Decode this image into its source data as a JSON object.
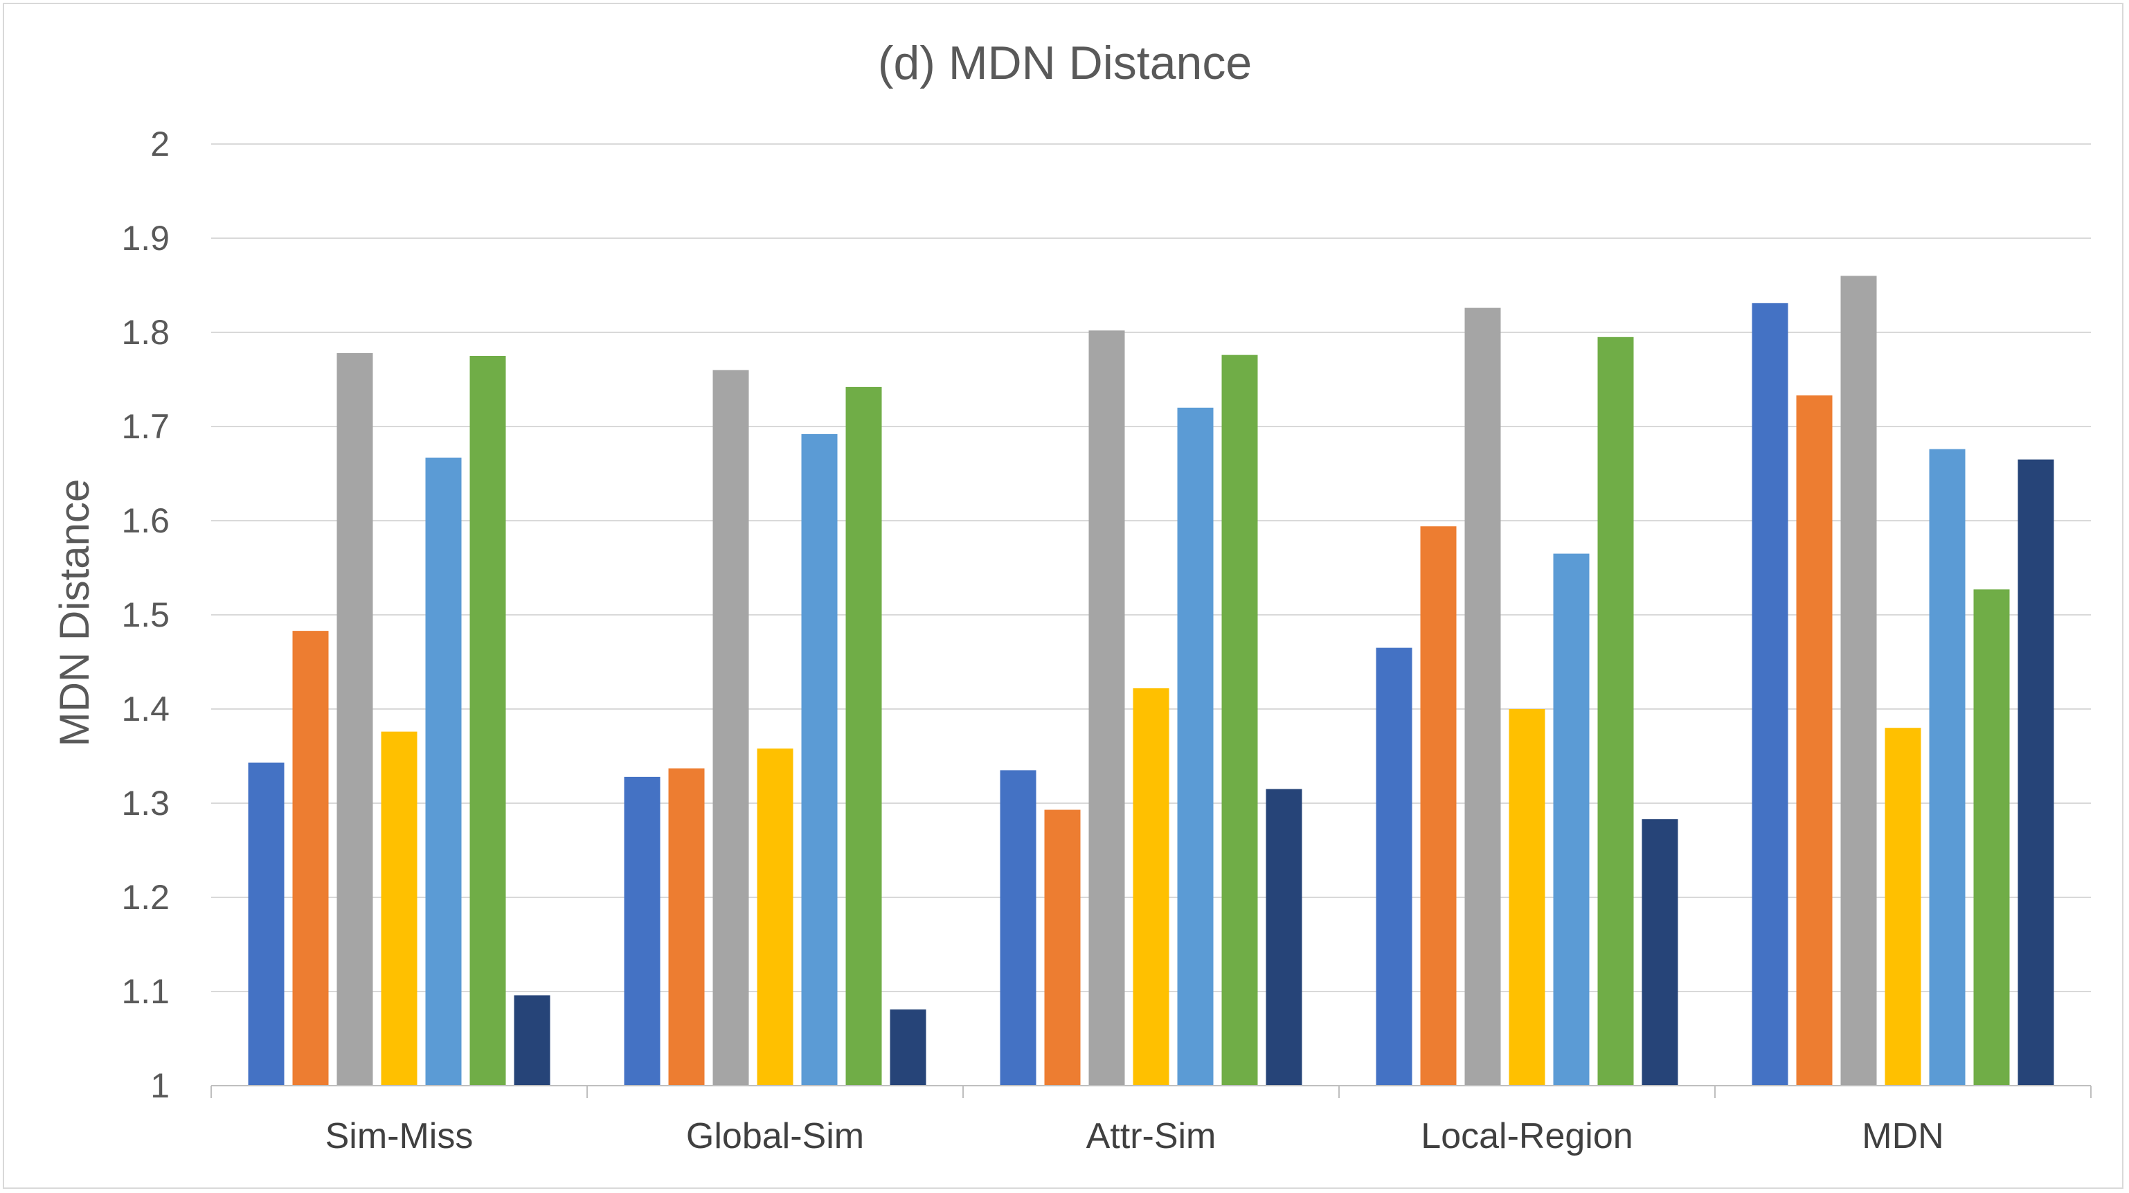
{
  "chart_data": {
    "type": "bar",
    "title": "(d) MDN Distance",
    "xlabel": "",
    "ylabel": "MDN Distance",
    "ylim": [
      1,
      2
    ],
    "yticks": [
      "1",
      "1.1",
      "1.2",
      "1.3",
      "1.4",
      "1.5",
      "1.6",
      "1.7",
      "1.8",
      "1.9",
      "2"
    ],
    "grid": true,
    "legend": "none",
    "categories": [
      "Sim-Miss",
      "Global-Sim",
      "Attr-Sim",
      "Local-Region",
      "MDN"
    ],
    "series": [
      {
        "color": "#4472C4",
        "values": [
          1.343,
          1.328,
          1.335,
          1.465,
          1.831
        ]
      },
      {
        "color": "#ED7D31",
        "values": [
          1.483,
          1.337,
          1.293,
          1.594,
          1.733
        ]
      },
      {
        "color": "#A5A5A5",
        "values": [
          1.778,
          1.76,
          1.802,
          1.826,
          1.86
        ]
      },
      {
        "color": "#FFC000",
        "values": [
          1.376,
          1.358,
          1.422,
          1.4,
          1.38
        ]
      },
      {
        "color": "#5B9BD5",
        "values": [
          1.667,
          1.692,
          1.72,
          1.565,
          1.676
        ]
      },
      {
        "color": "#70AD47",
        "values": [
          1.775,
          1.742,
          1.776,
          1.795,
          1.527
        ]
      },
      {
        "color": "#264478",
        "values": [
          1.096,
          1.081,
          1.315,
          1.283,
          1.665
        ]
      }
    ]
  }
}
